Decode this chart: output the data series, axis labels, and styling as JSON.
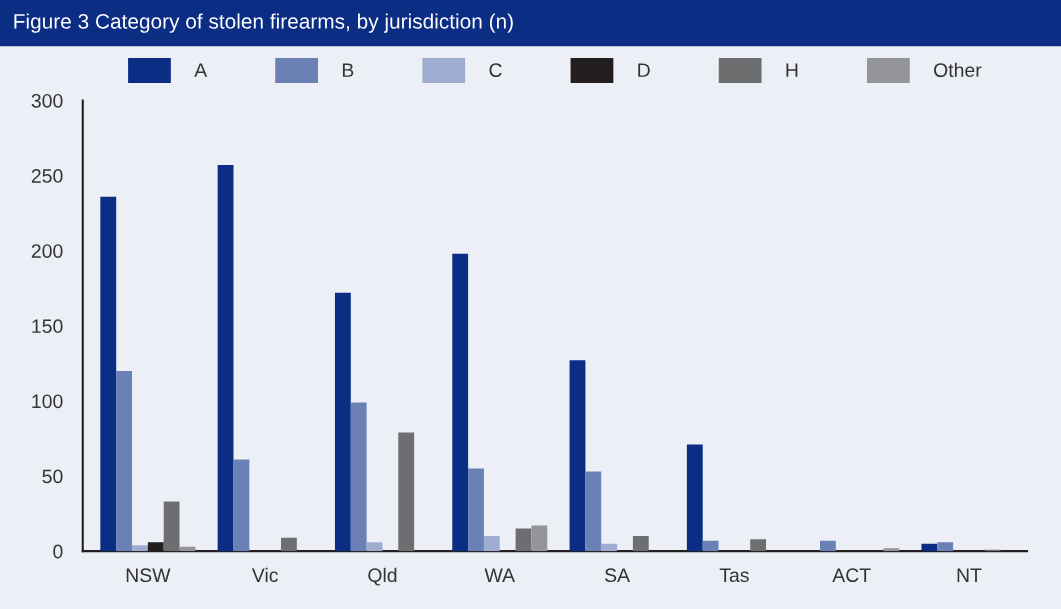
{
  "chart_data": {
    "type": "bar",
    "title": "Figure 3 Category of stolen firearms, by jurisdiction (n)",
    "categories": [
      "NSW",
      "Vic",
      "Qld",
      "WA",
      "SA",
      "Tas",
      "ACT",
      "NT"
    ],
    "series": [
      {
        "name": "A",
        "color": "#0b2d84",
        "values": [
          236,
          257,
          172,
          198,
          127,
          71,
          0,
          5
        ]
      },
      {
        "name": "B",
        "color": "#6b81b6",
        "values": [
          120,
          61,
          99,
          55,
          53,
          7,
          7,
          6
        ]
      },
      {
        "name": "C",
        "color": "#9eacd0",
        "values": [
          4,
          0,
          6,
          10,
          5,
          0,
          0,
          0
        ]
      },
      {
        "name": "D",
        "color": "#231f20",
        "values": [
          6,
          0,
          0,
          0,
          0,
          0,
          0,
          0
        ]
      },
      {
        "name": "H",
        "color": "#6d6e70",
        "values": [
          33,
          9,
          79,
          15,
          10,
          8,
          0,
          1
        ]
      },
      {
        "name": "Other",
        "color": "#939598",
        "values": [
          3,
          0,
          0,
          17,
          0,
          0,
          2,
          0
        ]
      }
    ],
    "ylim": [
      0,
      300
    ],
    "yticks": [
      0,
      50,
      100,
      150,
      200,
      250,
      300
    ],
    "grid": false,
    "legend": "top"
  }
}
